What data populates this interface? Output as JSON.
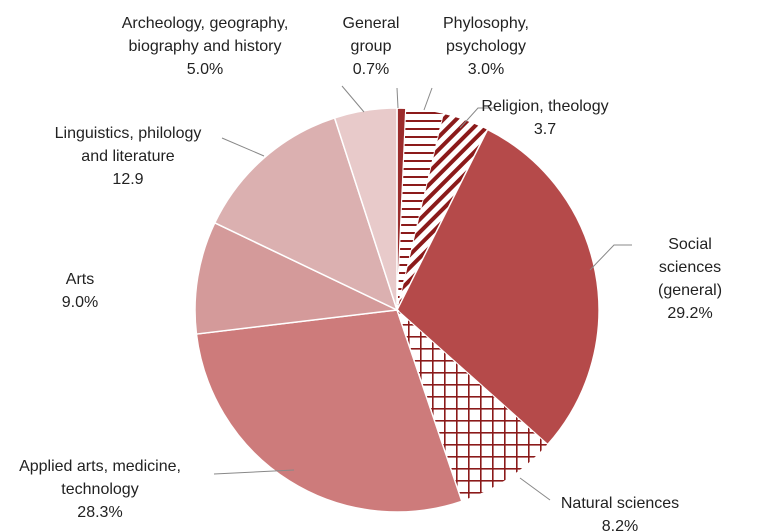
{
  "chart_data": {
    "type": "pie",
    "categories": [
      "General\ngroup",
      "Phylosophy,\npsychology",
      "Religion, theology",
      "Social sciences\n(general)",
      "Natural sciences",
      "Applied arts, medicine,\ntechnology",
      "Arts",
      "Linguistics, philology\nand literature",
      "Archeology, geography,\nbiography and history"
    ],
    "values": [
      0.7,
      3.0,
      3.7,
      29.2,
      8.2,
      28.3,
      9.0,
      12.9,
      5.0
    ],
    "value_labels": [
      "0.7%",
      "3.0%",
      "3.7",
      "29.2%",
      "8.2%",
      "28.3%",
      "9.0%",
      "12.9",
      "5.0%"
    ],
    "colors": [
      "#9b2c2c",
      "#8b1a1a",
      "#8b1a1a",
      "#b54a4a",
      "#8b1a1a",
      "#cd7b7b",
      "#d49a9a",
      "#dbb0b0",
      "#e8caca"
    ],
    "patterns": [
      "solid",
      "horizontal",
      "diagonal",
      "solid",
      "grid",
      "solid",
      "solid",
      "solid",
      "solid"
    ]
  }
}
